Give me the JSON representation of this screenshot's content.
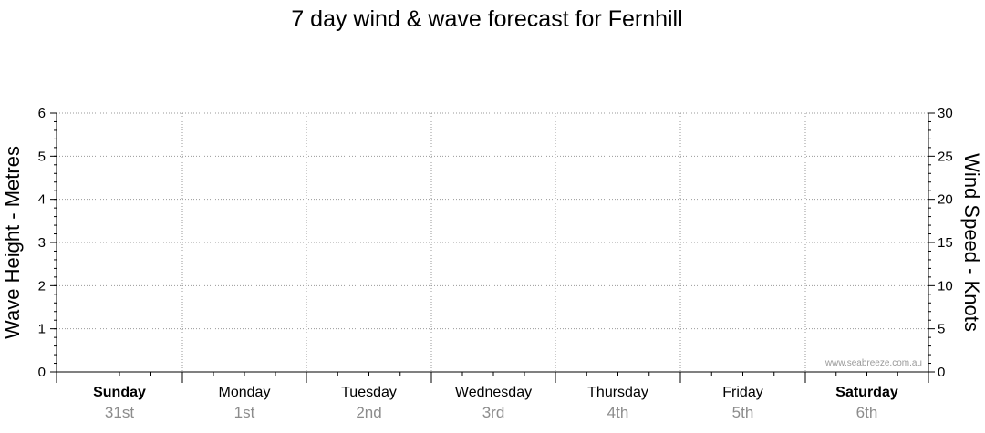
{
  "chart_data": {
    "type": "line",
    "title": "7 day wind & wave forecast for Fernhill",
    "ylabel_left": "Wave Height - Metres",
    "ylabel_right": "Wind Speed - Knots",
    "ylim_left": [
      0,
      6
    ],
    "ylim_right": [
      0,
      30
    ],
    "yticks_left": [
      "0",
      "1",
      "2",
      "3",
      "4",
      "5",
      "6"
    ],
    "yticks_right": [
      "0",
      "5",
      "10",
      "15",
      "20",
      "25",
      "30"
    ],
    "grid": true,
    "days": [
      {
        "day": "Sunday",
        "date": "31st",
        "bold": true
      },
      {
        "day": "Monday",
        "date": "1st",
        "bold": false
      },
      {
        "day": "Tuesday",
        "date": "2nd",
        "bold": false
      },
      {
        "day": "Wednesday",
        "date": "3rd",
        "bold": false
      },
      {
        "day": "Thursday",
        "date": "4th",
        "bold": false
      },
      {
        "day": "Friday",
        "date": "5th",
        "bold": false
      },
      {
        "day": "Saturday",
        "date": "6th",
        "bold": true
      }
    ],
    "series": [],
    "watermark": "www.seabreeze.com.au"
  }
}
